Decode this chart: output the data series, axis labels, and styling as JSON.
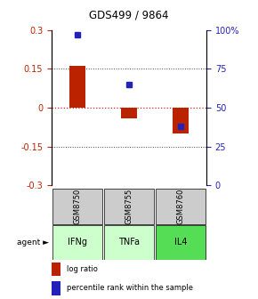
{
  "title": "GDS499 / 9864",
  "samples": [
    "GSM8750",
    "GSM8755",
    "GSM8760"
  ],
  "agents": [
    "IFNg",
    "TNFa",
    "IL4"
  ],
  "log_ratios": [
    0.16,
    -0.04,
    -0.1
  ],
  "percentile_ranks_pct": [
    97,
    65,
    38
  ],
  "ylim_left": [
    -0.3,
    0.3
  ],
  "ylim_right": [
    0,
    100
  ],
  "yticks_left": [
    -0.3,
    -0.15,
    0,
    0.15,
    0.3
  ],
  "yticks_right": [
    0,
    25,
    50,
    75,
    100
  ],
  "ytick_labels_left": [
    "-0.3",
    "-0.15",
    "0",
    "0.15",
    "0.3"
  ],
  "ytick_labels_right": [
    "0",
    "25",
    "50",
    "75",
    "100%"
  ],
  "hlines": [
    -0.15,
    0.15
  ],
  "bar_color_log": "#bb2200",
  "bar_color_pct": "#2222bb",
  "zero_line_color": "#cc2222",
  "hline_color": "#444444",
  "agent_colors": [
    "#ccffcc",
    "#ccffcc",
    "#55dd55"
  ],
  "sample_bg_color": "#cccccc",
  "bar_width": 0.3,
  "legend_log_color": "#bb2200",
  "legend_pct_color": "#2222bb"
}
